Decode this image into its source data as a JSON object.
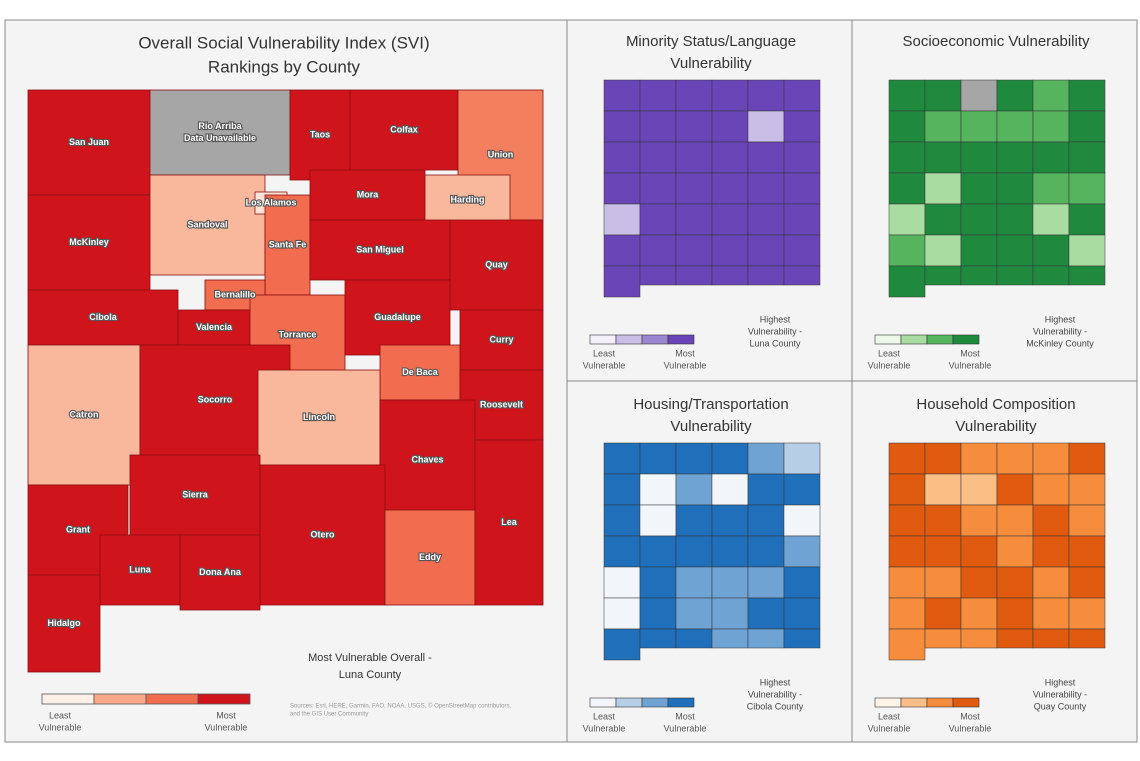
{
  "overall": {
    "title": [
      "Overall Social Vulnerability Index (SVI)",
      "Rankings by County"
    ],
    "counties": [
      {
        "name": "San Juan",
        "color": "#d0141c"
      },
      {
        "name": "Rio Arriba",
        "note": "Data Unavailable",
        "color": "#a6a6a6"
      },
      {
        "name": "Taos",
        "color": "#d0141c"
      },
      {
        "name": "Colfax",
        "color": "#d0141c"
      },
      {
        "name": "Union",
        "color": "#f47f5f"
      },
      {
        "name": "McKinley",
        "color": "#d0141c"
      },
      {
        "name": "Sandoval",
        "color": "#f9b79c"
      },
      {
        "name": "Los Alamos",
        "color": "#fde3d6"
      },
      {
        "name": "Santa Fe",
        "color": "#f26c50"
      },
      {
        "name": "Mora",
        "color": "#d0141c"
      },
      {
        "name": "Harding",
        "color": "#f9b79c"
      },
      {
        "name": "San Miguel",
        "color": "#d0141c"
      },
      {
        "name": "Quay",
        "color": "#d0141c"
      },
      {
        "name": "Cibola",
        "color": "#d0141c"
      },
      {
        "name": "Bernalillo",
        "color": "#f26c50"
      },
      {
        "name": "Valencia",
        "color": "#d0141c"
      },
      {
        "name": "Torrance",
        "color": "#f26c50"
      },
      {
        "name": "Guadalupe",
        "color": "#d0141c"
      },
      {
        "name": "Curry",
        "color": "#d0141c"
      },
      {
        "name": "De Baca",
        "color": "#f26c50"
      },
      {
        "name": "Roosevelt",
        "color": "#d0141c"
      },
      {
        "name": "Catron",
        "color": "#f9b79c"
      },
      {
        "name": "Socorro",
        "color": "#d0141c"
      },
      {
        "name": "Lincoln",
        "color": "#f9b79c"
      },
      {
        "name": "Chaves",
        "color": "#d0141c"
      },
      {
        "name": "Sierra",
        "color": "#d0141c"
      },
      {
        "name": "Grant",
        "color": "#d0141c"
      },
      {
        "name": "Otero",
        "color": "#d0141c"
      },
      {
        "name": "Eddy",
        "color": "#f26c50"
      },
      {
        "name": "Lea",
        "color": "#d0141c"
      },
      {
        "name": "Luna",
        "color": "#d0141c"
      },
      {
        "name": "Dona Ana",
        "color": "#d0141c"
      },
      {
        "name": "Hidalgo",
        "color": "#d0141c"
      }
    ],
    "annotation": [
      "Most Vulnerable Overall -",
      "Luna County"
    ],
    "legend": {
      "colors": [
        "#fdf0e8",
        "#f9a98a",
        "#f26c50",
        "#d0141c"
      ],
      "low": [
        "Least",
        "Vulnerable"
      ],
      "high": [
        "Most",
        "Vulnerable"
      ]
    },
    "source": [
      "Sources: Esri, HERE, Garmin, FAO, NOAA, USGS, © OpenStreetMap contributors,",
      "and the GIS User Community"
    ]
  },
  "panels": [
    {
      "title": [
        "Minority Status/Language",
        "Vulnerability"
      ],
      "colors": [
        "#f3f0fa",
        "#c9bfe6",
        "#9a86cf",
        "#6a45b8"
      ],
      "no_data": "#6a45b8",
      "annotation": [
        "Highest",
        "Vulnerability -",
        "Luna County"
      ],
      "legend": {
        "low": [
          "Least",
          "Vulnerable"
        ],
        "high": [
          "Most",
          "Vulnerable"
        ]
      }
    },
    {
      "title": [
        "Socioeconomic Vulnerability"
      ],
      "colors": [
        "#edf7ea",
        "#a9dca0",
        "#56b35e",
        "#1f8a3e"
      ],
      "no_data": "#a6a6a6",
      "annotation": [
        "Highest",
        "Vulnerability -",
        "McKinley County"
      ],
      "legend": {
        "low": [
          "Least",
          "Vulnerable"
        ],
        "high": [
          "Most",
          "Vulnerable"
        ]
      }
    },
    {
      "title": [
        "Housing/Transportation",
        "Vulnerability"
      ],
      "colors": [
        "#f2f6fb",
        "#b6cfe6",
        "#6ea3d3",
        "#1f6fbb"
      ],
      "no_data": "#1f6fbb",
      "annotation": [
        "Highest",
        "Vulnerability -",
        "Cibola County"
      ],
      "legend": {
        "low": [
          "Least",
          "Vulnerable"
        ],
        "high": [
          "Most",
          "Vulnerable"
        ]
      }
    },
    {
      "title": [
        "Household Composition",
        "Vulnerability"
      ],
      "colors": [
        "#fff3e6",
        "#fbbf86",
        "#f58d3c",
        "#e05a0f"
      ],
      "no_data": "#e05a0f",
      "annotation": [
        "Highest",
        "Vulnerability -",
        "Quay County"
      ],
      "legend": {
        "low": [
          "Least",
          "Vulnerable"
        ],
        "high": [
          "Most",
          "Vulnerable"
        ]
      }
    }
  ]
}
